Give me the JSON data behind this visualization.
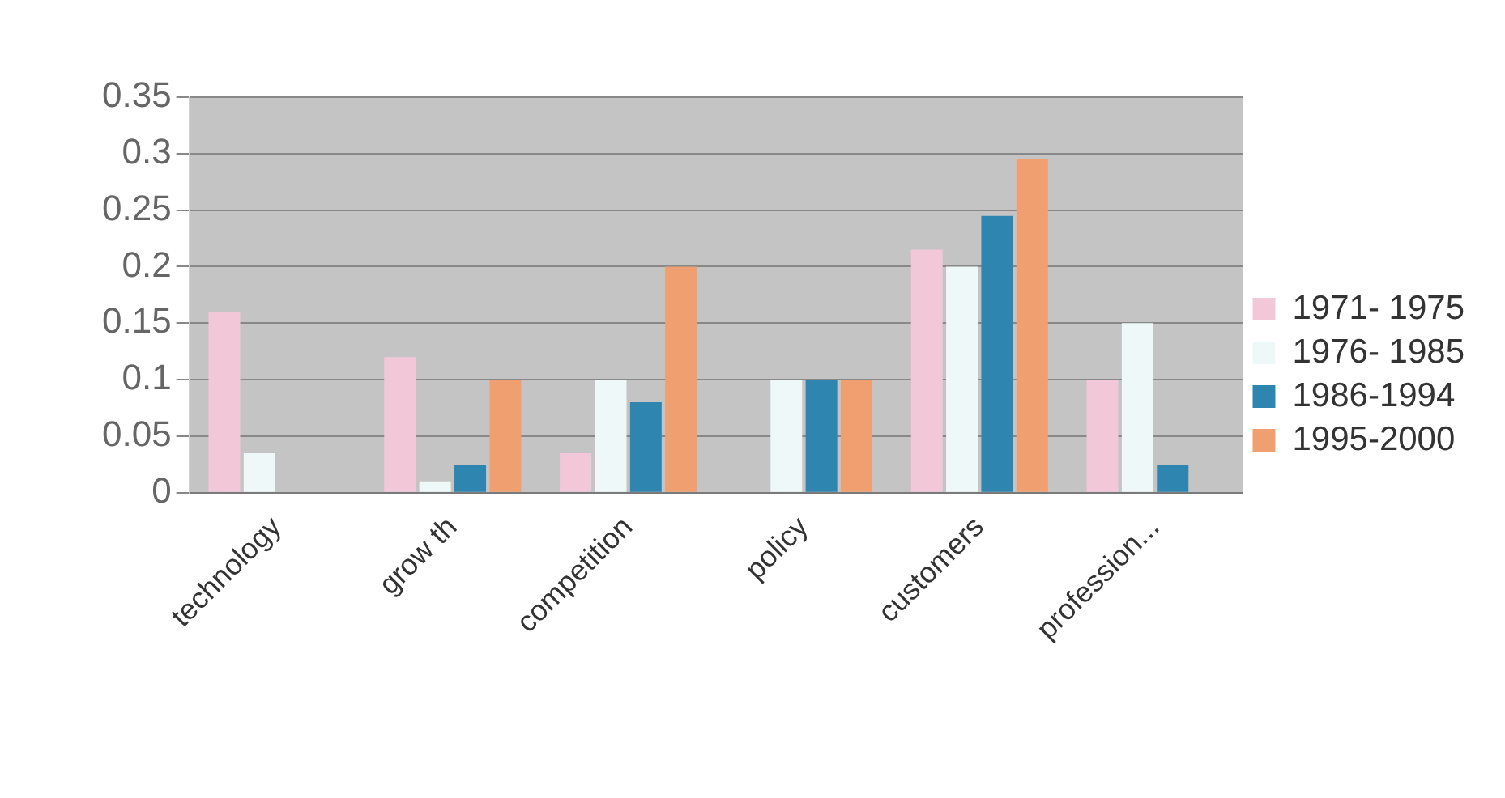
{
  "chart_data": {
    "type": "bar",
    "categories": [
      "technology",
      "grow th",
      "competition",
      "policy",
      "customers",
      "profession..."
    ],
    "series": [
      {
        "name": "1971- 1975",
        "color": "#f2c8d8",
        "values": [
          0.16,
          0.12,
          0.035,
          null,
          0.215,
          0.1
        ]
      },
      {
        "name": "1976- 1985",
        "color": "#eef8f8",
        "values": [
          0.035,
          0.01,
          0.1,
          0.1,
          0.2,
          0.15
        ]
      },
      {
        "name": "1986-1994",
        "color": "#2e86b0",
        "values": [
          null,
          0.025,
          0.08,
          0.1,
          0.245,
          0.025
        ]
      },
      {
        "name": "1995-2000",
        "color": "#f0a070",
        "values": [
          null,
          0.1,
          0.2,
          0.1,
          0.295,
          null
        ]
      }
    ],
    "ylim": [
      0,
      0.35
    ],
    "yticks": [
      0,
      0.05,
      0.1,
      0.15,
      0.2,
      0.25,
      0.3,
      0.35
    ],
    "grid": "y",
    "legend": "right"
  }
}
